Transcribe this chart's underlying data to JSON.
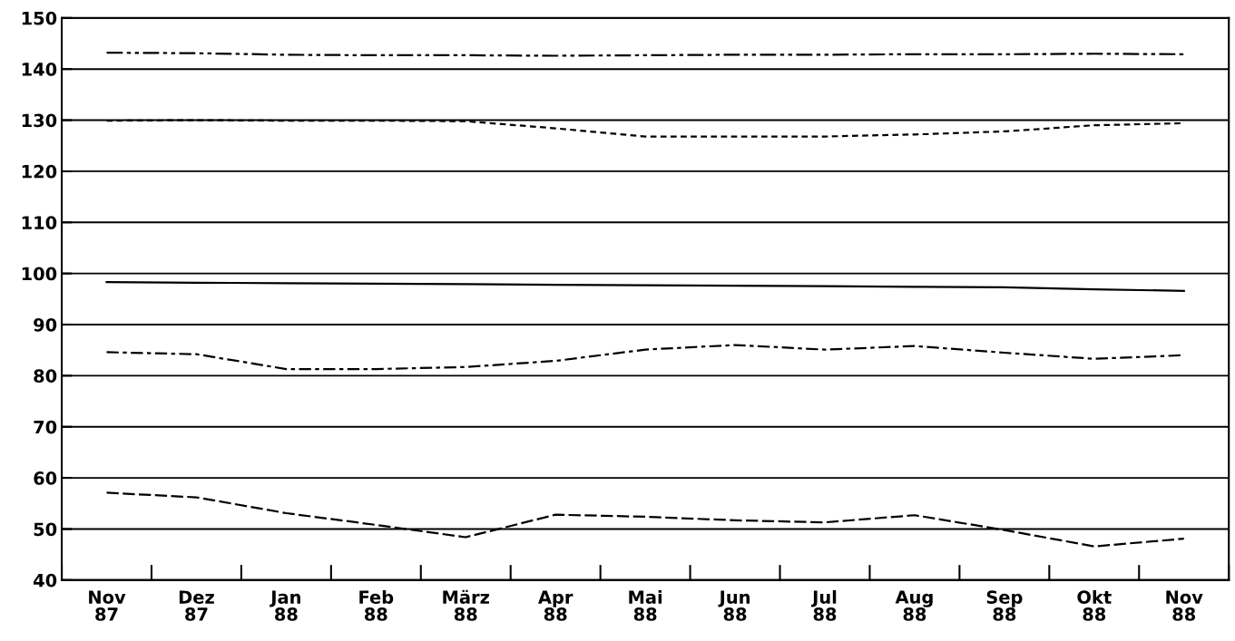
{
  "chart_data": {
    "type": "line",
    "categories": [
      "Nov\n87",
      "Dez\n87",
      "Jan\n88",
      "Feb\n88",
      "März\n88",
      "Apr\n88",
      "Mai\n88",
      "Jun\n88",
      "Jul\n88",
      "Aug\n88",
      "Sep\n88",
      "Okt\n88",
      "Nov\n88"
    ],
    "series": [
      {
        "color": "#000000",
        "line_style": "dashdotdot",
        "values": [
          143.2,
          143.1,
          142.8,
          142.7,
          142.7,
          142.6,
          142.7,
          142.8,
          142.8,
          142.9,
          142.9,
          143.0,
          142.9
        ]
      },
      {
        "color": "#000000",
        "line_style": "dotted",
        "values": [
          129.9,
          130.0,
          129.9,
          129.9,
          129.8,
          128.4,
          126.8,
          126.8,
          126.8,
          127.2,
          127.8,
          129.0,
          129.4
        ]
      },
      {
        "color": "#000000",
        "line_style": "solid",
        "values": [
          98.3,
          98.2,
          98.1,
          98.0,
          97.9,
          97.8,
          97.7,
          97.6,
          97.5,
          97.4,
          97.3,
          96.9,
          96.6
        ]
      },
      {
        "color": "#000000",
        "line_style": "dashdot",
        "values": [
          84.6,
          84.2,
          81.3,
          81.3,
          81.7,
          82.9,
          85.1,
          86.0,
          85.1,
          85.8,
          84.5,
          83.3,
          84.0
        ]
      },
      {
        "color": "#000000",
        "line_style": "dashed",
        "values": [
          57.1,
          56.2,
          53.1,
          50.8,
          48.4,
          52.8,
          52.4,
          51.7,
          51.3,
          52.7,
          49.8,
          46.6,
          48.1
        ]
      }
    ],
    "ylim": [
      40,
      150
    ],
    "yticks": [
      40,
      50,
      60,
      70,
      80,
      90,
      100,
      110,
      120,
      130,
      140,
      150
    ],
    "grid": "y"
  }
}
